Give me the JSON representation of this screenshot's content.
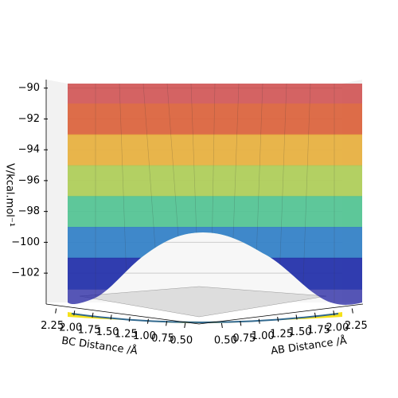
{
  "chart_data": {
    "type": "surface3d",
    "zlabel": "V/kcal.mol⁻¹",
    "xlabel": "BC Distance /Å",
    "ylabel": "AB Distance /Å",
    "zlim": [
      -103.8,
      -89.5
    ],
    "zticks": [
      {
        "value": -90,
        "label": "−90"
      },
      {
        "value": -92,
        "label": "−92"
      },
      {
        "value": -94,
        "label": "−94"
      },
      {
        "value": -96,
        "label": "−96"
      },
      {
        "value": -98,
        "label": "−98"
      },
      {
        "value": -100,
        "label": "−100"
      },
      {
        "value": -102,
        "label": "−102"
      }
    ],
    "xlim": [
      0.4,
      2.3
    ],
    "xticks": [
      2.25,
      {
        "value": 2,
        "label": "2.00"
      },
      1.75,
      {
        "value": 1.5,
        "label": "1.50"
      },
      1.25,
      {
        "value": 1,
        "label": "1.00"
      },
      0.75,
      {
        "value": 0.5,
        "label": "0.50"
      }
    ],
    "ylim": [
      0.4,
      2.3
    ],
    "yticks": [
      {
        "value": 0.5,
        "label": "0.50"
      },
      0.75,
      {
        "value": 1,
        "label": "1.00"
      },
      1.25,
      {
        "value": 1.5,
        "label": "1.50"
      },
      1.75,
      {
        "value": 2,
        "label": "2.00"
      },
      2.25
    ],
    "grid": true
  }
}
